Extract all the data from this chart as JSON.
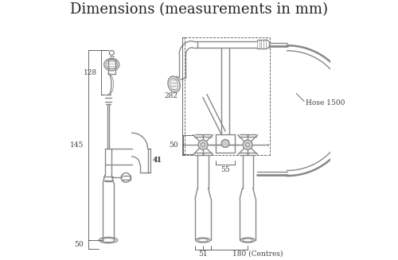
{
  "title": "Dimensions (measurements in mm)",
  "title_fontsize": 13,
  "title_font": "DejaVu Serif",
  "bg_color": "#ffffff",
  "line_color": "#888888",
  "dim_color": "#555555",
  "text_color": "#444444",
  "lw_tap": 1.0,
  "lw_dim": 0.6,
  "figsize": [
    5.0,
    3.27
  ],
  "dpi": 100
}
